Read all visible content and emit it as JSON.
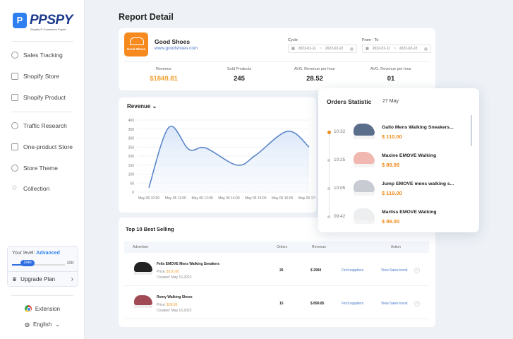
{
  "app": {
    "brand": "PPSPY",
    "tagline": "Shopify E-Commerce Expert"
  },
  "sidebar": {
    "items": [
      {
        "label": "Sales Tracking",
        "icon": "target-icon"
      },
      {
        "label": "Shopify Store",
        "icon": "store-icon"
      },
      {
        "label": "Shopify Product",
        "icon": "product-icon"
      },
      {
        "label": "Traffic Research",
        "icon": "traffic-icon"
      },
      {
        "label": "One-product Store",
        "icon": "home-icon"
      },
      {
        "label": "Store Theme",
        "icon": "palette-icon"
      },
      {
        "label": "Collection",
        "icon": "star-icon"
      }
    ],
    "level": {
      "label": "Your level:",
      "value": "Advanced",
      "current": "2940",
      "max": "10K",
      "progress_percent": 29.4
    },
    "upgrade": "Upgrade Plan",
    "extension": "Extension",
    "language": "English"
  },
  "page": {
    "title": "Report Detail"
  },
  "store": {
    "badge": "Good Shoes",
    "name": "Good Shoes",
    "url": "www.goodshoes.com",
    "cycle": {
      "label": "Cycle",
      "from": "2022-01-11",
      "to": "2022-02-22"
    },
    "range": {
      "label": "From - To",
      "from": "2022-01-11",
      "to": "2022-02-22"
    },
    "stats": [
      {
        "label": "Revenue",
        "value": "$1849.81"
      },
      {
        "label": "Sold Products",
        "value": "245"
      },
      {
        "label": "AVG. Revenue per hour",
        "value": "28.52"
      },
      {
        "label": "AVG. Revenue per hour",
        "value": "01"
      }
    ]
  },
  "chart_data": {
    "type": "area",
    "title": "Revenue",
    "ylim": [
      0,
      400
    ],
    "yticks": [
      0,
      50,
      100,
      150,
      200,
      250,
      300,
      350,
      400
    ],
    "xticks": [
      "May 06 10:00",
      "May 06 11:00",
      "May 06 12:00",
      "May 06 14:00",
      "May 06 15:00",
      "May 06 16:00",
      "May 06 17:00"
    ],
    "tick_times": [
      "10:00",
      "11:00",
      "12:00",
      "14:00",
      "15:00",
      "16:00",
      "17:00"
    ],
    "points": [
      {
        "x": "10:00",
        "y": 25
      },
      {
        "x": "10:45",
        "y": 360
      },
      {
        "x": "11:30",
        "y": 237
      },
      {
        "x": "12:15",
        "y": 245
      },
      {
        "x": "14:18",
        "y": 150
      },
      {
        "x": "15:00",
        "y": 205
      },
      {
        "x": "16:12",
        "y": 338
      },
      {
        "x": "17:00",
        "y": 250
      }
    ],
    "color": "#5b86c9",
    "grid": true
  },
  "orders": {
    "title": "Orders Statistic",
    "date": "27 May",
    "items": [
      {
        "time": "10:32",
        "name": "Gallo Mens Walking Sneakers...",
        "price": "$ 110.00",
        "color": "#5a6e8c",
        "active": true
      },
      {
        "time": "10:25",
        "name": "Maxine EMOVE Walking",
        "price": "$ 89.99",
        "color": "#f0b8b0",
        "active": false
      },
      {
        "time": "10:05",
        "name": "Jump EMOVE mens walking s...",
        "price": "$ 119.00",
        "color": "#c8ccd2",
        "active": false
      },
      {
        "time": "09:42",
        "name": "Marliss EMOVE Walking",
        "price": "$ 99.00",
        "color": "#eceef0",
        "active": false
      }
    ]
  },
  "best": {
    "title": "Top 10 Best Selling",
    "headers": [
      "Advertiser",
      "Orders",
      "Revenue",
      "Action"
    ],
    "rows": [
      {
        "name": "Felix EMOVE Mens Walking Sneakers",
        "price_label": "Price:",
        "price": "$110.00",
        "created_label": "Created:",
        "created": "May 16,2022",
        "orders": "26",
        "revenue": "$ 2960",
        "find": "Find suppliers",
        "trend": "View Sales trend",
        "color": "#222"
      },
      {
        "name": "Romy Walking Shoes",
        "price_label": "Price:",
        "price": "$39.99",
        "created_label": "Created:",
        "created": "May 16,2022",
        "orders": "15",
        "revenue": "$ 899.85",
        "find": "Find suppliers",
        "trend": "View Sales trend",
        "color": "#a04a55"
      }
    ]
  }
}
